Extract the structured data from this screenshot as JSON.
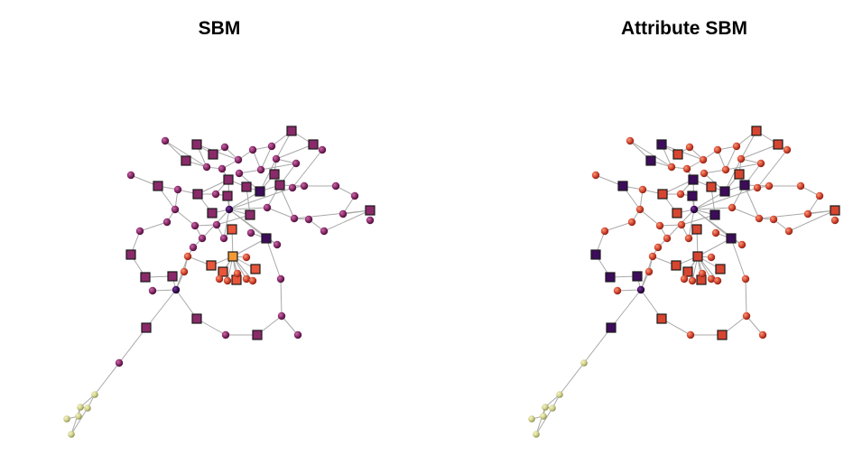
{
  "panels": [
    {
      "title": "SBM"
    },
    {
      "title": "Attribute SBM"
    }
  ],
  "colors": {
    "edge": "#a8a8a8",
    "node_stroke": "#1a1a1a",
    "sbm_purple": "#8a2a6a",
    "sbm_dark": "#3d0c5a",
    "sbm_orange": "#e8553a",
    "sbm_bright": "#f49a32",
    "attr_red": "#d6452f",
    "attr_dark": "#2e0a4e",
    "tail_yellow": "#cfd08a"
  },
  "node_shapes": [
    "square",
    "sphere"
  ]
}
